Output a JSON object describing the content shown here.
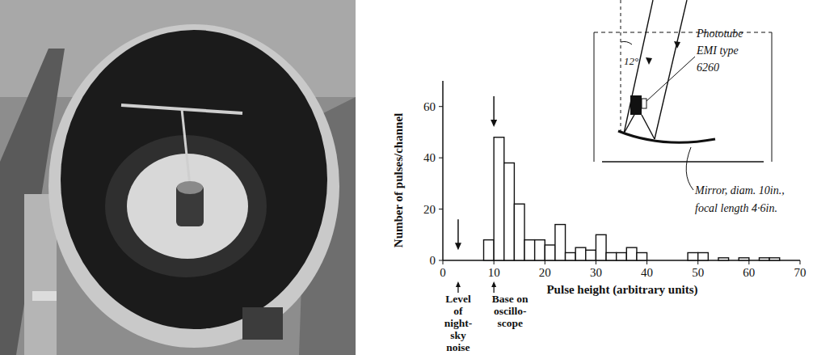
{
  "chart_data": {
    "type": "histogram",
    "x_label": "Pulse height (arbitrary units)",
    "y_label": "Number of pulses/channel",
    "bins": [
      8,
      10,
      12,
      14,
      16,
      18,
      20,
      22,
      24,
      26,
      28,
      30,
      32,
      34,
      36,
      38,
      40,
      42,
      44,
      46,
      48,
      50,
      52,
      54,
      56,
      58,
      60,
      62,
      64,
      66
    ],
    "values": [
      8,
      48,
      38,
      22,
      8,
      8,
      6,
      14,
      3,
      5,
      4,
      10,
      3,
      3,
      5,
      3,
      0,
      0,
      0,
      0,
      3,
      3,
      0,
      1,
      0,
      1,
      0,
      1,
      1
    ],
    "color": "#ffffff",
    "xlim": [
      0,
      70
    ],
    "xticks": [
      0,
      10,
      20,
      30,
      40,
      50,
      60,
      70
    ],
    "ylim": [
      0,
      70
    ],
    "yticks": [
      0,
      20,
      40,
      60
    ],
    "grid": false,
    "annotations": [
      {
        "x": 3,
        "lines": [
          "Level",
          "of",
          "night-",
          "sky",
          "noise"
        ]
      },
      {
        "x": 10,
        "lines": [
          "Base on",
          "oscillo-",
          "scope"
        ]
      }
    ]
  },
  "inset": {
    "angle": "12°",
    "phototube": [
      "Phototube",
      "EMI type",
      "6260"
    ],
    "mirror": [
      "Mirror, diam. 10in.,",
      "focal length 4·6in."
    ]
  }
}
